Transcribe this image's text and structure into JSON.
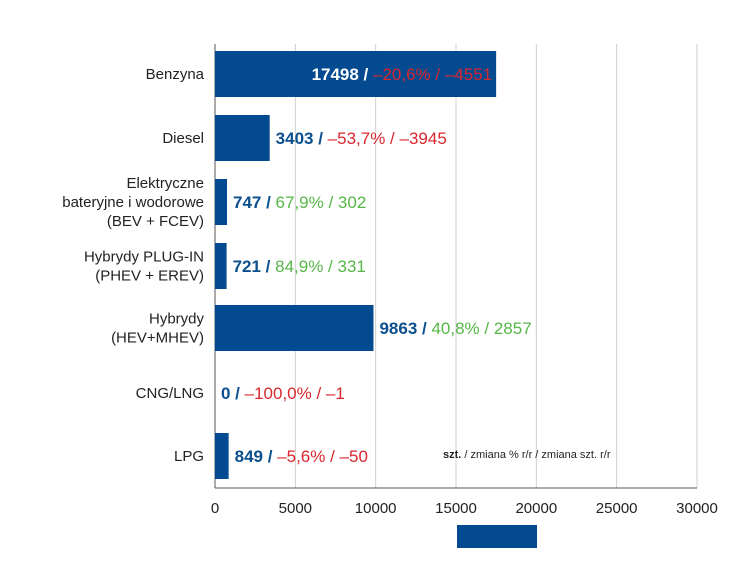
{
  "chart_data": {
    "type": "bar",
    "orientation": "horizontal",
    "categories": [
      [
        "Benzyna"
      ],
      [
        "Diesel"
      ],
      [
        "Elektryczne",
        "bateryjne i wodorowe",
        "(BEV + FCEV)"
      ],
      [
        "Hybrydy PLUG-IN",
        "(PHEV + EREV)"
      ],
      [
        "Hybrydy",
        "(HEV+MHEV)"
      ],
      [
        "CNG/LNG"
      ],
      [
        "LPG"
      ]
    ],
    "values": [
      17498,
      3403,
      747,
      721,
      9863,
      0,
      849
    ],
    "pct_change": [
      "–20,6%",
      "–53,7%",
      "67,9%",
      "84,9%",
      "40,8%",
      "–100,0%",
      "–5,6%"
    ],
    "abs_change": [
      "–4551",
      "–3945",
      "302",
      "331",
      "2857",
      "–1",
      "–50"
    ],
    "change_sign": [
      "negative",
      "negative",
      "positive",
      "positive",
      "positive",
      "negative",
      "negative"
    ],
    "xlim": [
      0,
      30000
    ],
    "xticks": [
      "0",
      "5000",
      "10000",
      "15000",
      "20000",
      "25000",
      "30000"
    ],
    "tick_values": [
      0,
      5000,
      10000,
      15000,
      20000,
      25000,
      30000
    ],
    "grid": true,
    "legend_note": {
      "bold": "szt.",
      "rest": " / zmiana % r/r / zmiana szt. r/r"
    },
    "colors": {
      "bar": "#034a91",
      "value_text": "#0b4f8e",
      "negative": "#d9272d",
      "positive": "#56b747",
      "grid": "#cfcfcf",
      "axis": "#555555"
    }
  }
}
